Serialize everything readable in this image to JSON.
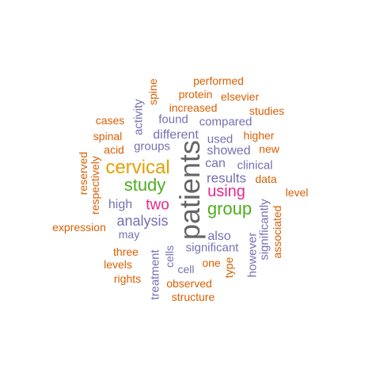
{
  "palette": {
    "orange": "#d95f02",
    "purple": "#7570b3",
    "gold": "#e6a000",
    "green": "#4daf1a",
    "magenta": "#e7298a",
    "gray": "#666666"
  },
  "words": [
    {
      "text": "patients",
      "color": "gray",
      "vertical": true
    },
    {
      "text": "cervical",
      "color": "gold",
      "vertical": false
    },
    {
      "text": "study",
      "color": "green",
      "vertical": false
    },
    {
      "text": "group",
      "color": "green",
      "vertical": false
    },
    {
      "text": "using",
      "color": "magenta",
      "vertical": false
    },
    {
      "text": "two",
      "color": "magenta",
      "vertical": false
    },
    {
      "text": "analysis",
      "color": "purple",
      "vertical": false
    },
    {
      "text": "results",
      "color": "purple",
      "vertical": false
    },
    {
      "text": "showed",
      "color": "purple",
      "vertical": false
    },
    {
      "text": "can",
      "color": "purple",
      "vertical": false
    },
    {
      "text": "high",
      "color": "purple",
      "vertical": false
    },
    {
      "text": "also",
      "color": "purple",
      "vertical": false
    },
    {
      "text": "significant",
      "color": "purple",
      "vertical": false
    },
    {
      "text": "different",
      "color": "purple",
      "vertical": false
    },
    {
      "text": "groups",
      "color": "purple",
      "vertical": false
    },
    {
      "text": "used",
      "color": "purple",
      "vertical": false
    },
    {
      "text": "compared",
      "color": "purple",
      "vertical": false
    },
    {
      "text": "found",
      "color": "purple",
      "vertical": false
    },
    {
      "text": "clinical",
      "color": "purple",
      "vertical": false
    },
    {
      "text": "may",
      "color": "purple",
      "vertical": false
    },
    {
      "text": "cell",
      "color": "purple",
      "vertical": false
    },
    {
      "text": "cells",
      "color": "purple",
      "vertical": true
    },
    {
      "text": "treatment",
      "color": "purple",
      "vertical": true
    },
    {
      "text": "however",
      "color": "purple",
      "vertical": true
    },
    {
      "text": "significantly",
      "color": "purple",
      "vertical": true
    },
    {
      "text": "activity",
      "color": "purple",
      "vertical": true
    },
    {
      "text": "performed",
      "color": "orange",
      "vertical": false
    },
    {
      "text": "protein",
      "color": "orange",
      "vertical": false
    },
    {
      "text": "elsevier",
      "color": "orange",
      "vertical": false
    },
    {
      "text": "increased",
      "color": "orange",
      "vertical": false
    },
    {
      "text": "studies",
      "color": "orange",
      "vertical": false
    },
    {
      "text": "cases",
      "color": "orange",
      "vertical": false
    },
    {
      "text": "spinal",
      "color": "orange",
      "vertical": false
    },
    {
      "text": "acid",
      "color": "orange",
      "vertical": false
    },
    {
      "text": "higher",
      "color": "orange",
      "vertical": false
    },
    {
      "text": "new",
      "color": "orange",
      "vertical": false
    },
    {
      "text": "data",
      "color": "orange",
      "vertical": false
    },
    {
      "text": "level",
      "color": "orange",
      "vertical": false
    },
    {
      "text": "expression",
      "color": "orange",
      "vertical": false
    },
    {
      "text": "three",
      "color": "orange",
      "vertical": false
    },
    {
      "text": "levels",
      "color": "orange",
      "vertical": false
    },
    {
      "text": "rights",
      "color": "orange",
      "vertical": false
    },
    {
      "text": "one",
      "color": "orange",
      "vertical": false
    },
    {
      "text": "observed",
      "color": "orange",
      "vertical": false
    },
    {
      "text": "structure",
      "color": "orange",
      "vertical": false
    },
    {
      "text": "spine",
      "color": "orange",
      "vertical": true
    },
    {
      "text": "reserved",
      "color": "orange",
      "vertical": true
    },
    {
      "text": "respectively",
      "color": "orange",
      "vertical": true
    },
    {
      "text": "type",
      "color": "orange",
      "vertical": true
    },
    {
      "text": "associated",
      "color": "orange",
      "vertical": true
    }
  ]
}
